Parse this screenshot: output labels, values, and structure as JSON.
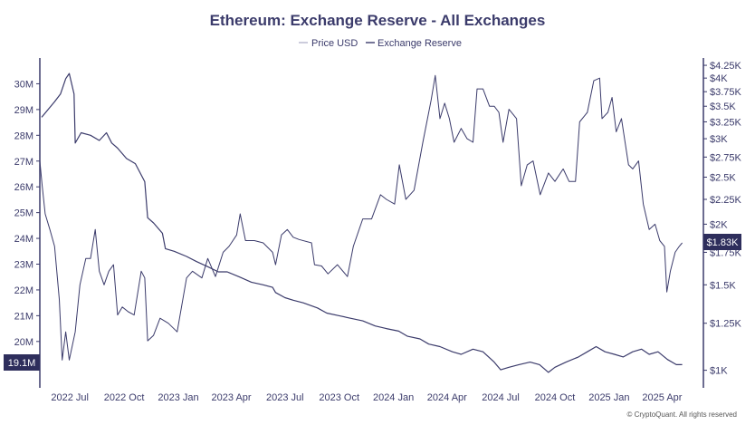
{
  "chart_data": {
    "type": "line",
    "title": "Ethereum: Exchange Reserve - All Exchanges",
    "legend": [
      "Price USD",
      "Exchange Reserve"
    ],
    "legend_placement": "top-center",
    "left_axis": {
      "ticks": [
        {
          "value": 20,
          "label": "20M"
        },
        {
          "value": 21,
          "label": "21M"
        },
        {
          "value": 22,
          "label": "22M"
        },
        {
          "value": 23,
          "label": "23M"
        },
        {
          "value": 24,
          "label": "24M"
        },
        {
          "value": 25,
          "label": "25M"
        },
        {
          "value": 26,
          "label": "26M"
        },
        {
          "value": 27,
          "label": "27M"
        },
        {
          "value": 28,
          "label": "28M"
        },
        {
          "value": 29,
          "label": "29M"
        },
        {
          "value": 30,
          "label": "30M"
        }
      ],
      "range": [
        18.2,
        31.0
      ]
    },
    "right_axis": {
      "scale": "log",
      "ticks": [
        {
          "value": 1000,
          "label": "$1K"
        },
        {
          "value": 1250,
          "label": "$1.25K"
        },
        {
          "value": 1500,
          "label": "$1.5K"
        },
        {
          "value": 1750,
          "label": "$1.75K"
        },
        {
          "value": 2000,
          "label": "$2K"
        },
        {
          "value": 2250,
          "label": "$2.25K"
        },
        {
          "value": 2500,
          "label": "$2.5K"
        },
        {
          "value": 2750,
          "label": "$2.75K"
        },
        {
          "value": 3000,
          "label": "$3K"
        },
        {
          "value": 3250,
          "label": "$3.25K"
        },
        {
          "value": 3500,
          "label": "$3.5K"
        },
        {
          "value": 3750,
          "label": "$3.75K"
        },
        {
          "value": 4000,
          "label": "$4K"
        },
        {
          "value": 4250,
          "label": "$4.25K"
        }
      ],
      "range": [
        920,
        4400
      ]
    },
    "x_axis": {
      "ticks": [
        {
          "value": "2022-07-01",
          "label": "2022 Jul"
        },
        {
          "value": "2022-10-01",
          "label": "2022 Oct"
        },
        {
          "value": "2023-01-01",
          "label": "2023 Jan"
        },
        {
          "value": "2023-04-01",
          "label": "2023 Apr"
        },
        {
          "value": "2023-07-01",
          "label": "2023 Jul"
        },
        {
          "value": "2023-10-01",
          "label": "2023 Oct"
        },
        {
          "value": "2024-01-01",
          "label": "2024 Jan"
        },
        {
          "value": "2024-04-01",
          "label": "2024 Apr"
        },
        {
          "value": "2024-07-01",
          "label": "2024 Jul"
        },
        {
          "value": "2024-10-01",
          "label": "2024 Oct"
        },
        {
          "value": "2025-01-01",
          "label": "2025 Jan"
        },
        {
          "value": "2025-04-01",
          "label": "2025 Apr"
        }
      ],
      "range": [
        "2022-05-11",
        "2025-06-10"
      ]
    },
    "series": [
      {
        "name": "Exchange Reserve",
        "axis": "left",
        "color": "#3b3b6b",
        "points": [
          [
            "2022-05-14",
            28.7
          ],
          [
            "2022-05-25",
            29.0
          ],
          [
            "2022-06-05",
            29.3
          ],
          [
            "2022-06-15",
            29.6
          ],
          [
            "2022-06-24",
            30.2
          ],
          [
            "2022-06-30",
            30.4
          ],
          [
            "2022-07-08",
            29.6
          ],
          [
            "2022-07-10",
            27.7
          ],
          [
            "2022-07-20",
            28.1
          ],
          [
            "2022-08-05",
            28.0
          ],
          [
            "2022-08-20",
            27.8
          ],
          [
            "2022-09-01",
            28.1
          ],
          [
            "2022-09-10",
            27.7
          ],
          [
            "2022-09-20",
            27.5
          ],
          [
            "2022-10-05",
            27.1
          ],
          [
            "2022-10-20",
            26.9
          ],
          [
            "2022-11-05",
            26.2
          ],
          [
            "2022-11-10",
            24.8
          ],
          [
            "2022-11-20",
            24.6
          ],
          [
            "2022-12-05",
            24.2
          ],
          [
            "2022-12-10",
            23.6
          ],
          [
            "2022-12-25",
            23.5
          ],
          [
            "2023-01-15",
            23.3
          ],
          [
            "2023-02-01",
            23.1
          ],
          [
            "2023-02-20",
            22.9
          ],
          [
            "2023-03-10",
            22.7
          ],
          [
            "2023-03-25",
            22.7
          ],
          [
            "2023-04-15",
            22.5
          ],
          [
            "2023-05-05",
            22.3
          ],
          [
            "2023-05-25",
            22.2
          ],
          [
            "2023-06-10",
            22.1
          ],
          [
            "2023-06-15",
            21.9
          ],
          [
            "2023-07-01",
            21.7
          ],
          [
            "2023-07-15",
            21.6
          ],
          [
            "2023-08-01",
            21.5
          ],
          [
            "2023-08-25",
            21.3
          ],
          [
            "2023-09-10",
            21.1
          ],
          [
            "2023-10-01",
            21.0
          ],
          [
            "2023-10-20",
            20.9
          ],
          [
            "2023-11-10",
            20.8
          ],
          [
            "2023-12-01",
            20.6
          ],
          [
            "2023-12-20",
            20.5
          ],
          [
            "2024-01-10",
            20.4
          ],
          [
            "2024-01-25",
            20.2
          ],
          [
            "2024-02-15",
            20.1
          ],
          [
            "2024-03-01",
            19.9
          ],
          [
            "2024-03-20",
            19.8
          ],
          [
            "2024-04-10",
            19.6
          ],
          [
            "2024-04-25",
            19.5
          ],
          [
            "2024-05-15",
            19.7
          ],
          [
            "2024-06-01",
            19.6
          ],
          [
            "2024-06-20",
            19.2
          ],
          [
            "2024-07-01",
            18.9
          ],
          [
            "2024-07-15",
            19.0
          ],
          [
            "2024-08-01",
            19.1
          ],
          [
            "2024-08-20",
            19.2
          ],
          [
            "2024-09-05",
            19.1
          ],
          [
            "2024-09-20",
            18.8
          ],
          [
            "2024-10-01",
            19.0
          ],
          [
            "2024-10-20",
            19.2
          ],
          [
            "2024-11-10",
            19.4
          ],
          [
            "2024-11-25",
            19.6
          ],
          [
            "2024-12-10",
            19.8
          ],
          [
            "2024-12-25",
            19.6
          ],
          [
            "2025-01-10",
            19.5
          ],
          [
            "2025-01-25",
            19.4
          ],
          [
            "2025-02-10",
            19.6
          ],
          [
            "2025-02-25",
            19.7
          ],
          [
            "2025-03-10",
            19.5
          ],
          [
            "2025-03-25",
            19.6
          ],
          [
            "2025-04-10",
            19.3
          ],
          [
            "2025-04-25",
            19.1
          ],
          [
            "2025-05-05",
            19.1
          ]
        ]
      },
      {
        "name": "Price USD",
        "axis": "right",
        "color": "#3b3b6b",
        "points": [
          [
            "2022-05-11",
            2700
          ],
          [
            "2022-05-15",
            2400
          ],
          [
            "2022-05-20",
            2100
          ],
          [
            "2022-05-28",
            1950
          ],
          [
            "2022-06-05",
            1800
          ],
          [
            "2022-06-13",
            1400
          ],
          [
            "2022-06-18",
            1050
          ],
          [
            "2022-06-24",
            1200
          ],
          [
            "2022-06-30",
            1050
          ],
          [
            "2022-07-10",
            1200
          ],
          [
            "2022-07-18",
            1500
          ],
          [
            "2022-07-28",
            1700
          ],
          [
            "2022-08-05",
            1700
          ],
          [
            "2022-08-13",
            1950
          ],
          [
            "2022-08-20",
            1600
          ],
          [
            "2022-08-28",
            1500
          ],
          [
            "2022-09-05",
            1600
          ],
          [
            "2022-09-13",
            1650
          ],
          [
            "2022-09-20",
            1300
          ],
          [
            "2022-09-28",
            1350
          ],
          [
            "2022-10-08",
            1320
          ],
          [
            "2022-10-18",
            1300
          ],
          [
            "2022-10-30",
            1600
          ],
          [
            "2022-11-05",
            1550
          ],
          [
            "2022-11-10",
            1150
          ],
          [
            "2022-11-20",
            1180
          ],
          [
            "2022-12-01",
            1280
          ],
          [
            "2022-12-15",
            1250
          ],
          [
            "2022-12-30",
            1200
          ],
          [
            "2023-01-15",
            1550
          ],
          [
            "2023-01-25",
            1600
          ],
          [
            "2023-02-10",
            1550
          ],
          [
            "2023-02-20",
            1700
          ],
          [
            "2023-03-05",
            1560
          ],
          [
            "2023-03-18",
            1750
          ],
          [
            "2023-03-28",
            1800
          ],
          [
            "2023-04-10",
            1900
          ],
          [
            "2023-04-16",
            2100
          ],
          [
            "2023-04-25",
            1850
          ],
          [
            "2023-05-10",
            1850
          ],
          [
            "2023-05-25",
            1830
          ],
          [
            "2023-06-10",
            1750
          ],
          [
            "2023-06-15",
            1650
          ],
          [
            "2023-06-25",
            1900
          ],
          [
            "2023-07-05",
            1950
          ],
          [
            "2023-07-15",
            1880
          ],
          [
            "2023-07-25",
            1860
          ],
          [
            "2023-08-15",
            1830
          ],
          [
            "2023-08-20",
            1650
          ],
          [
            "2023-09-01",
            1640
          ],
          [
            "2023-09-12",
            1580
          ],
          [
            "2023-09-28",
            1650
          ],
          [
            "2023-10-15",
            1560
          ],
          [
            "2023-10-25",
            1800
          ],
          [
            "2023-11-10",
            2050
          ],
          [
            "2023-11-25",
            2050
          ],
          [
            "2023-12-10",
            2300
          ],
          [
            "2023-12-20",
            2250
          ],
          [
            "2024-01-03",
            2200
          ],
          [
            "2024-01-11",
            2650
          ],
          [
            "2024-01-22",
            2250
          ],
          [
            "2024-02-05",
            2350
          ],
          [
            "2024-02-20",
            2950
          ],
          [
            "2024-03-05",
            3600
          ],
          [
            "2024-03-12",
            4050
          ],
          [
            "2024-03-20",
            3300
          ],
          [
            "2024-03-28",
            3550
          ],
          [
            "2024-04-05",
            3300
          ],
          [
            "2024-04-13",
            2950
          ],
          [
            "2024-04-25",
            3150
          ],
          [
            "2024-05-05",
            3000
          ],
          [
            "2024-05-15",
            2950
          ],
          [
            "2024-05-22",
            3800
          ],
          [
            "2024-06-01",
            3800
          ],
          [
            "2024-06-12",
            3500
          ],
          [
            "2024-06-20",
            3500
          ],
          [
            "2024-06-28",
            3400
          ],
          [
            "2024-07-05",
            2950
          ],
          [
            "2024-07-15",
            3450
          ],
          [
            "2024-07-28",
            3300
          ],
          [
            "2024-08-05",
            2400
          ],
          [
            "2024-08-15",
            2650
          ],
          [
            "2024-08-25",
            2700
          ],
          [
            "2024-09-06",
            2300
          ],
          [
            "2024-09-20",
            2550
          ],
          [
            "2024-10-01",
            2450
          ],
          [
            "2024-10-15",
            2600
          ],
          [
            "2024-10-25",
            2450
          ],
          [
            "2024-11-05",
            2450
          ],
          [
            "2024-11-12",
            3250
          ],
          [
            "2024-11-25",
            3400
          ],
          [
            "2024-12-06",
            3950
          ],
          [
            "2024-12-16",
            4000
          ],
          [
            "2024-12-20",
            3300
          ],
          [
            "2024-12-30",
            3400
          ],
          [
            "2025-01-06",
            3650
          ],
          [
            "2025-01-13",
            3100
          ],
          [
            "2025-01-22",
            3300
          ],
          [
            "2025-02-03",
            2650
          ],
          [
            "2025-02-10",
            2600
          ],
          [
            "2025-02-20",
            2700
          ],
          [
            "2025-02-28",
            2200
          ],
          [
            "2025-03-10",
            1950
          ],
          [
            "2025-03-20",
            2000
          ],
          [
            "2025-03-28",
            1850
          ],
          [
            "2025-04-05",
            1800
          ],
          [
            "2025-04-09",
            1450
          ],
          [
            "2025-04-15",
            1600
          ],
          [
            "2025-04-23",
            1750
          ],
          [
            "2025-04-30",
            1800
          ],
          [
            "2025-05-05",
            1830
          ]
        ]
      }
    ],
    "last_value_tags": {
      "left": "19.1M",
      "right": "$1.83K"
    }
  },
  "footer": "© CryptoQuant. All rights reserved"
}
